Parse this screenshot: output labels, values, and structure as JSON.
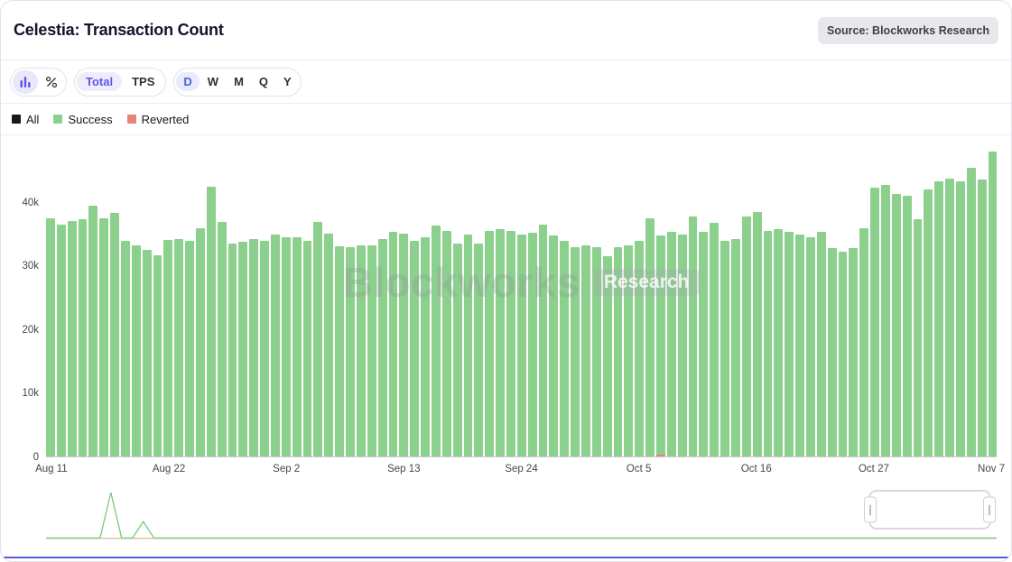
{
  "header": {
    "title": "Celestia: Transaction Count",
    "source_badge": "Source: Blockworks Research"
  },
  "toolbar": {
    "chart_type": {
      "options": [
        {
          "icon": "bar-chart-icon"
        },
        {
          "icon": "percent-icon"
        }
      ],
      "selected_index": 0
    },
    "metric": {
      "options": [
        "Total",
        "TPS"
      ],
      "selected": "Total"
    },
    "period": {
      "options": [
        "D",
        "W",
        "M",
        "Q",
        "Y"
      ],
      "selected": "D"
    }
  },
  "legend": {
    "items": [
      {
        "label": "All",
        "color": "#17171c"
      },
      {
        "label": "Success",
        "color": "#8cd08d"
      },
      {
        "label": "Reverted",
        "color": "#e8837a"
      }
    ]
  },
  "watermark": {
    "brand": "Blockworks",
    "suffix": "Research"
  },
  "colors": {
    "accent_purple": "#6157e8",
    "accent_blue": "#4c5fe2",
    "bar_green": "#8cd08d",
    "reverted_red": "#e8837a",
    "nav_bottom": "#5b5bd7"
  },
  "chart_data": [
    {
      "type": "bar",
      "name": "daily-transaction-count",
      "title": "Celestia: Transaction Count",
      "series_name": "Success",
      "ylim": [
        0,
        49000
      ],
      "grid": false,
      "yticks": [
        {
          "value": 0,
          "label": "0"
        },
        {
          "value": 10000,
          "label": "10k"
        },
        {
          "value": 20000,
          "label": "20k"
        },
        {
          "value": 30000,
          "label": "30k"
        },
        {
          "value": 40000,
          "label": "40k"
        }
      ],
      "xticks": [
        {
          "index": 0,
          "label": "Aug 11"
        },
        {
          "index": 11,
          "label": "Aug 22"
        },
        {
          "index": 22,
          "label": "Sep 2"
        },
        {
          "index": 33,
          "label": "Sep 13"
        },
        {
          "index": 44,
          "label": "Sep 24"
        },
        {
          "index": 55,
          "label": "Oct 5"
        },
        {
          "index": 66,
          "label": "Oct 16"
        },
        {
          "index": 77,
          "label": "Oct 27"
        },
        {
          "index": 88,
          "label": "Nov 7"
        }
      ],
      "date_range": [
        "Aug 11",
        "Nov 7"
      ],
      "values": [
        37600,
        36600,
        37200,
        37400,
        39600,
        37600,
        38400,
        34100,
        33300,
        32600,
        31700,
        34200,
        34400,
        34100,
        36000,
        42600,
        37100,
        33600,
        33900,
        34400,
        34100,
        35100,
        34600,
        34600,
        34100,
        37000,
        35200,
        33200,
        33100,
        33400,
        33400,
        34400,
        35400,
        35200,
        34100,
        34600,
        36400,
        35600,
        33600,
        35100,
        33600,
        35600,
        35900,
        35600,
        35100,
        35300,
        36600,
        34900,
        34100,
        33100,
        33400,
        33100,
        31600,
        33000,
        33400,
        34100,
        37600,
        34600,
        35400,
        35100,
        37900,
        35400,
        36900,
        34100,
        34400,
        37900,
        38600,
        35600,
        35900,
        35400,
        35100,
        34600,
        35400,
        32900,
        32400,
        32900,
        36100,
        42400,
        42900,
        41400,
        41100,
        37400,
        42100,
        43400,
        43900,
        43400,
        45600,
        43800,
        48100
      ],
      "reverted_nonzero": [
        {
          "index": 57,
          "value": 300
        }
      ]
    },
    {
      "type": "line",
      "name": "navigator-minimap",
      "points": 89,
      "series": [
        {
          "name": "success",
          "color": "#7cc87c",
          "baseline_pct": 3,
          "spikes": [
            {
              "index": 6,
              "pct": 100
            },
            {
              "index": 9,
              "pct": 38
            }
          ]
        },
        {
          "name": "reverted",
          "color": "#d6c3a2",
          "baseline_pct": 2.5,
          "spikes": []
        }
      ],
      "brush": {
        "left_pct": 85.9,
        "width_pct": 12.1
      }
    }
  ]
}
